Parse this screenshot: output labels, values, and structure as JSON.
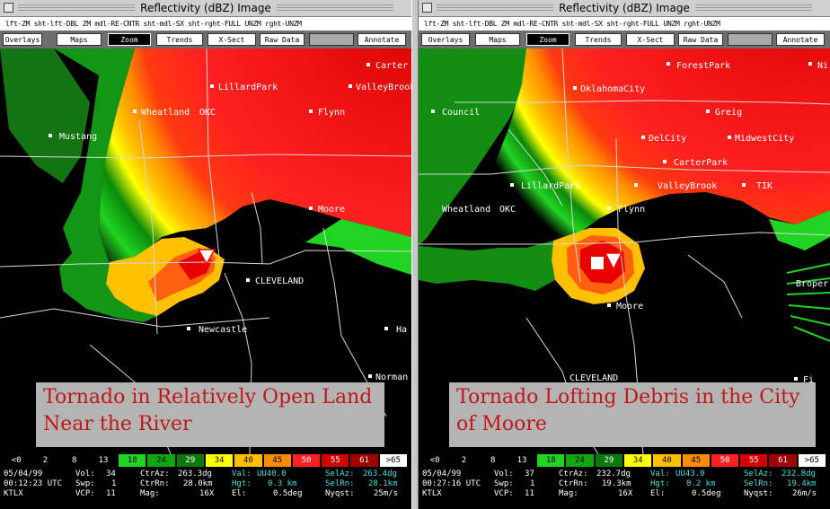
{
  "windows": [
    {
      "id": "left",
      "title": "Reflectivity (dBZ) Image",
      "mouse_hint": "lft-ZM  sht-lft-DBL ZM  mdl-RE-CNTR  sht-mdl-SX  sht-rght-FULL UNZM  rght-UNZM",
      "toolbar": {
        "overlays": "Overlays",
        "maps": "Maps",
        "zoom": "Zoom",
        "trends": "Trends",
        "xsect": "X-Sect",
        "rawdata": "Raw Data",
        "blank": "",
        "annotate": "Annotate"
      },
      "labels": {
        "lillardpark": "LillardPark",
        "wheatland": "Wheatland",
        "okc": "OKC",
        "mustang": "Mustang",
        "carter": "Carter",
        "valleybrook": "ValleyBrook",
        "flynn": "Flynn",
        "moore": "Moore",
        "cleveland": "CLEVELAND",
        "newcastle": "Newcastle",
        "ha": "Ha",
        "norman": "Norman"
      },
      "caption": [
        "Tornado in Relatively Open Land",
        "Near the River"
      ],
      "status": {
        "date": "05/04/99",
        "time": "00:12:23 UTC",
        "site": "KTLX",
        "vol_label": "Vol:",
        "vol": "34",
        "swp_label": "Swp:",
        "swp": "1",
        "vcp_label": "VCP:",
        "vcp": "11",
        "ctraz_label": "CtrAz:",
        "ctraz": "263.3dg",
        "ctrrn_label": "CtrRn:",
        "ctrrn": "28.0km",
        "mag_label": "Mag:",
        "mag": "16X",
        "val_label": "Val:",
        "val": "UU40.0",
        "hgt_label": "Hgt:",
        "hgt": "0.3 km",
        "el_label": "El:",
        "el": "0.5deg",
        "selaz_label": "SelAz:",
        "selaz": "263.4dg",
        "selrn_label": "SelRn:",
        "selrn": "28.1km",
        "nyqst_label": "Nyqst:",
        "nyqst": "25m/s"
      }
    },
    {
      "id": "right",
      "title": "Reflectivity (dBZ) Image",
      "mouse_hint": "lft-ZM  sht-lft-DBL ZM  mdl-RE-CNTR  sht-mdl-SX  sht-rght-FULL UNZM  rght-UNZM",
      "toolbar": {
        "overlays": "Overlays",
        "maps": "Maps",
        "zoom": "Zoom",
        "trends": "Trends",
        "xsect": "X-Sect",
        "rawdata": "Raw Data",
        "blank": "",
        "annotate": "Annotate"
      },
      "labels": {
        "forestpark": "ForestPark",
        "ni": "Ni",
        "oklahomacity": "OklahomaCity",
        "council": "Council",
        "greig": "Greig",
        "delcity": "DelCity",
        "midwestcity": "MidwestCity",
        "carterpark": "CarterPark",
        "lillardpark": "LillardPark",
        "valleybrook": "ValleyBrook",
        "tik": "TIK",
        "wheatland": "Wheatland",
        "okc": "OKC",
        "flynn": "Flynn",
        "moore": "Moore",
        "broper": "Broper",
        "cleveland": "CLEVELAND",
        "fi": "Fi"
      },
      "caption": [
        "Tornado Lofting Debris in the City",
        "of Moore"
      ],
      "status": {
        "date": "05/04/99",
        "time": "00:27:16 UTC",
        "site": "KTLX",
        "vol_label": "Vol:",
        "vol": "37",
        "swp_label": "Swp:",
        "swp": "1",
        "vcp_label": "VCP:",
        "vcp": "11",
        "ctraz_label": "CtrAz:",
        "ctraz": "232.7dg",
        "ctrrn_label": "CtrRn:",
        "ctrrn": "19.3km",
        "mag_label": "Mag:",
        "mag": "16X",
        "val_label": "Val:",
        "val": "UU43.0",
        "hgt_label": "Hgt:",
        "hgt": "0.2 km",
        "el_label": "El:",
        "el": "0.5deg",
        "selaz_label": "SelAz:",
        "selaz": "232.8dg",
        "selrn_label": "SelRn:",
        "selrn": "19.4km",
        "nyqst_label": "Nyqst:",
        "nyqst": "26m/s"
      }
    }
  ],
  "color_scale": [
    {
      "label": "<0",
      "bg": "#000000",
      "fg": "#ffffff"
    },
    {
      "label": "2",
      "bg": "#000000",
      "fg": "#ffffff"
    },
    {
      "label": "8",
      "bg": "#000000",
      "fg": "#ffffff"
    },
    {
      "label": "13",
      "bg": "#000000",
      "fg": "#ffffff"
    },
    {
      "label": "18",
      "bg": "#22d422",
      "fg": "#000000"
    },
    {
      "label": "24",
      "bg": "#0fa80f",
      "fg": "#000000"
    },
    {
      "label": "29",
      "bg": "#0a7a0a",
      "fg": "#ffffff"
    },
    {
      "label": "34",
      "bg": "#ffff00",
      "fg": "#000000"
    },
    {
      "label": "40",
      "bg": "#ffc000",
      "fg": "#000000"
    },
    {
      "label": "45",
      "bg": "#ff8c00",
      "fg": "#000000"
    },
    {
      "label": "50",
      "bg": "#ff2020",
      "fg": "#ffffff"
    },
    {
      "label": "55",
      "bg": "#d40000",
      "fg": "#ffffff"
    },
    {
      "label": "61",
      "bg": "#a00000",
      "fg": "#ffffff"
    },
    {
      "label": ">65",
      "bg": "#ffffff",
      "fg": "#000000"
    }
  ]
}
